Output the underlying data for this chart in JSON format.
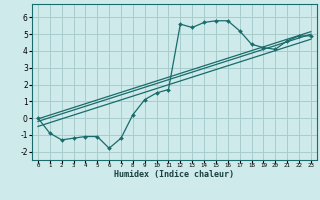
{
  "xlabel": "Humidex (Indice chaleur)",
  "ylabel": "",
  "bg_color": "#ceeaea",
  "grid_color": "#a8cccc",
  "line_color": "#1a6b6b",
  "xlim": [
    -0.5,
    23.5
  ],
  "ylim": [
    -2.5,
    6.8
  ],
  "xticks": [
    0,
    1,
    2,
    3,
    4,
    5,
    6,
    7,
    8,
    9,
    10,
    11,
    12,
    13,
    14,
    15,
    16,
    17,
    18,
    19,
    20,
    21,
    22,
    23
  ],
  "yticks": [
    -2,
    -1,
    0,
    1,
    2,
    3,
    4,
    5,
    6
  ],
  "zigzag_x": [
    0,
    1,
    2,
    3,
    4,
    5,
    6,
    7,
    8,
    9,
    10,
    11,
    12,
    13,
    14,
    15,
    16,
    17,
    18,
    19,
    20,
    21,
    22,
    23
  ],
  "zigzag_y": [
    0.0,
    -0.9,
    -1.3,
    -1.2,
    -1.1,
    -1.1,
    -1.8,
    -1.2,
    0.2,
    1.1,
    1.5,
    1.7,
    5.6,
    5.4,
    5.7,
    5.8,
    5.8,
    5.2,
    4.4,
    4.2,
    4.1,
    4.6,
    4.9,
    4.9
  ],
  "line1_x": [
    0,
    23
  ],
  "line1_y": [
    -0.2,
    5.0
  ],
  "line2_x": [
    0,
    23
  ],
  "line2_y": [
    -0.5,
    4.7
  ],
  "line3_x": [
    0,
    23
  ],
  "line3_y": [
    -0.05,
    5.15
  ]
}
